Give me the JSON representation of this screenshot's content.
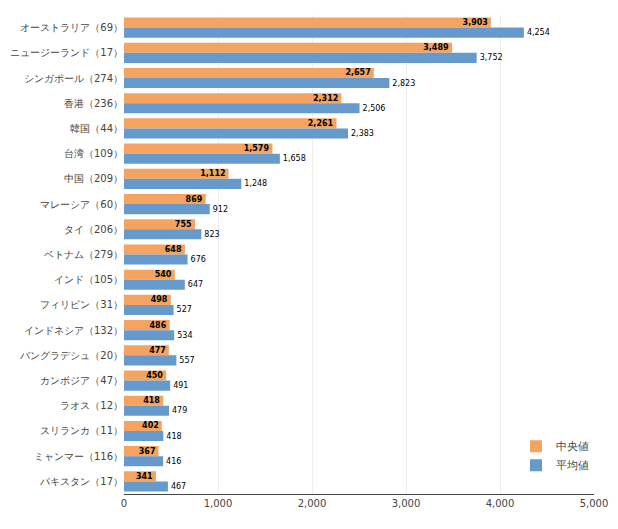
{
  "chart_data": {
    "type": "bar",
    "orientation": "horizontal",
    "categories": [
      "オーストラリア（69）",
      "ニュージーランド（17）",
      "シンガポール（274）",
      "香港（236）",
      "韓国（44）",
      "台湾（109）",
      "中国（209）",
      "マレーシア（60）",
      "タイ（206）",
      "ベトナム（279）",
      "インド（105）",
      "フィリピン（31）",
      "インドネシア（132）",
      "バングラデシュ（20）",
      "カンボジア（47）",
      "ラオス（12）",
      "スリランカ（11）",
      "ミャンマー（116）",
      "パキスタン（17）"
    ],
    "series": [
      {
        "name": "中央値",
        "color": "#f4a460",
        "values": [
          3903,
          3489,
          2657,
          2312,
          2261,
          1579,
          1112,
          869,
          755,
          648,
          540,
          498,
          486,
          477,
          450,
          418,
          402,
          367,
          341
        ],
        "value_labels": [
          "3,903",
          "3,489",
          "2,657",
          "2,312",
          "2,261",
          "1,579",
          "1,112",
          "869",
          "755",
          "648",
          "540",
          "498",
          "486",
          "477",
          "450",
          "418",
          "402",
          "367",
          "341"
        ]
      },
      {
        "name": "平均値",
        "color": "#6699cc",
        "values": [
          4254,
          3752,
          2823,
          2506,
          2383,
          1658,
          1248,
          912,
          823,
          676,
          647,
          527,
          534,
          557,
          491,
          479,
          418,
          416,
          467
        ],
        "value_labels": [
          "4,254",
          "3,752",
          "2,823",
          "2,506",
          "2,383",
          "1,658",
          "1,248",
          "912",
          "823",
          "676",
          "647",
          "527",
          "534",
          "557",
          "491",
          "479",
          "418",
          "416",
          "467"
        ]
      }
    ],
    "xlim": [
      0,
      5000
    ],
    "xticks": [
      0,
      {
        "value": 1000,
        "label": "1,000"
      },
      {
        "value": 2000,
        "label": "2,000"
      },
      {
        "value": 3000,
        "label": "3,000"
      },
      {
        "value": 4000,
        "label": "4,000"
      },
      {
        "value": 5000,
        "label": "5,000"
      }
    ],
    "grid": true,
    "legend": "lower right",
    "data_labels": true
  }
}
